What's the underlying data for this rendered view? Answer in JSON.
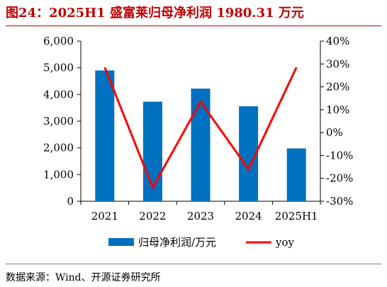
{
  "title": "图24：2025H1 盛富莱归母净利润 1980.31 万元",
  "source": "数据来源：Wind、开源证券研究所",
  "chart_data": {
    "type": "bar",
    "categories": [
      "2021",
      "2022",
      "2023",
      "2024",
      "2025H1"
    ],
    "series": [
      {
        "name": "归母净利润/万元",
        "type": "bar",
        "axis": "left",
        "color": "#0070c0",
        "values": [
          4900,
          3730,
          4220,
          3560,
          1980.31
        ]
      },
      {
        "name": "yoy",
        "type": "line",
        "axis": "right",
        "color": "#ff0000",
        "values": [
          28.5,
          -24,
          13.5,
          -16,
          28.5
        ]
      }
    ],
    "y_left": {
      "min": 0,
      "max": 6000,
      "ticks": [
        0,
        1000,
        2000,
        3000,
        4000,
        5000,
        6000
      ],
      "tick_labels": [
        "0",
        "1,000",
        "2,000",
        "3,000",
        "4,000",
        "5,000",
        "6,000"
      ]
    },
    "y_right": {
      "min": -30,
      "max": 40,
      "ticks": [
        -30,
        -20,
        -10,
        0,
        10,
        20,
        30,
        40
      ],
      "tick_labels": [
        "-30%",
        "-20%",
        "-10%",
        "0%",
        "10%",
        "20%",
        "30%",
        "40%"
      ]
    },
    "grid": false,
    "legend_position": "bottom"
  }
}
